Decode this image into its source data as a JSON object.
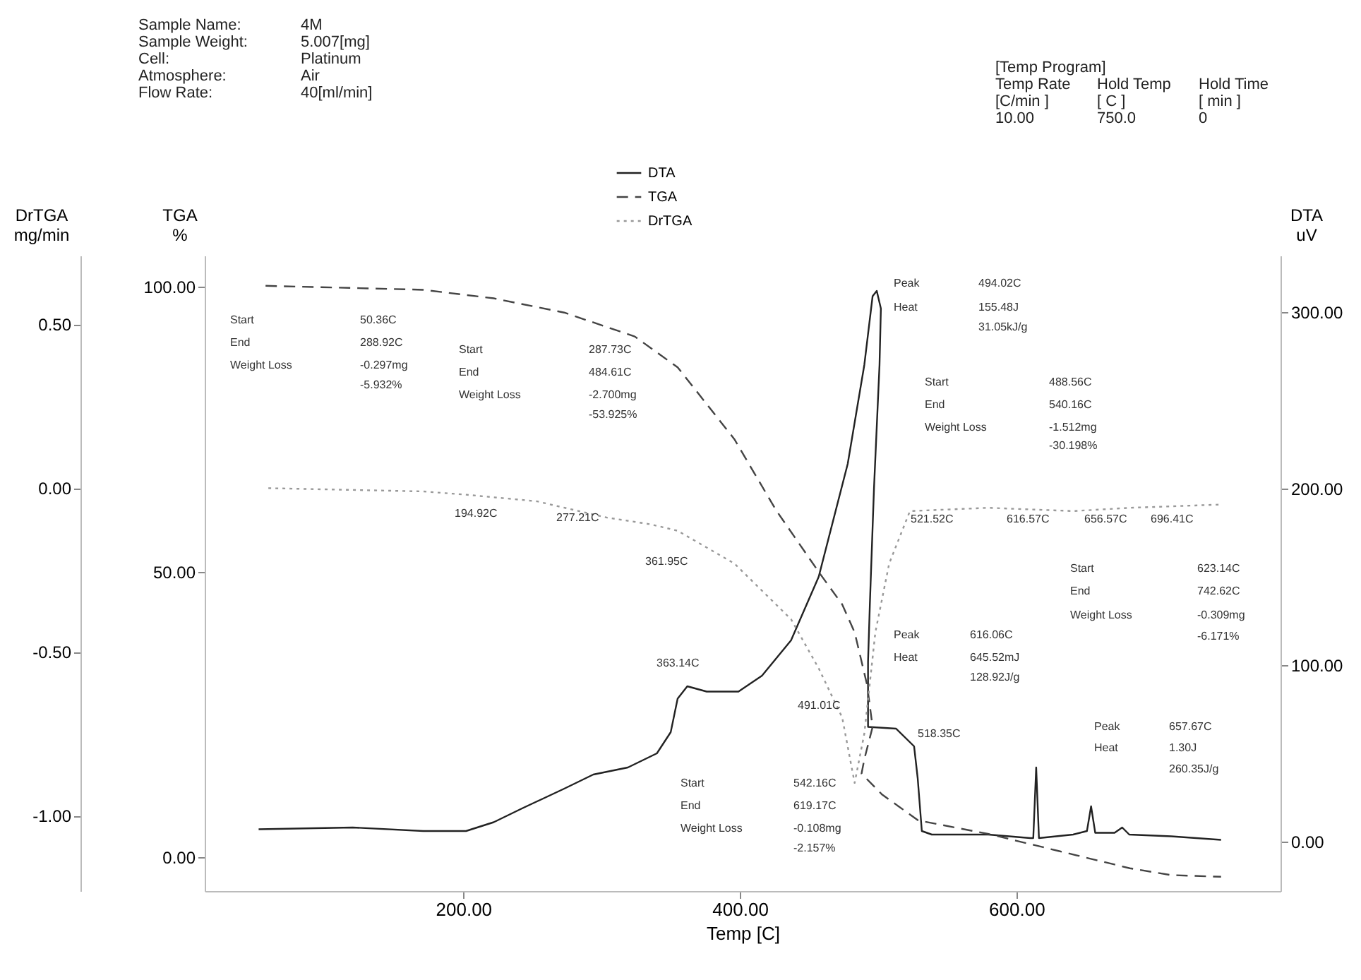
{
  "chart_data": {
    "type": "line",
    "xlabel": "Temp [C]",
    "ylabel": "TGA\n%",
    "y2label": "DTA\nuV",
    "y3label": "DrTGA\nmg/min",
    "xlim": [
      13,
      791
    ],
    "xticks": [
      {
        "value": 200,
        "label": "200.00"
      },
      {
        "value": 400,
        "label": "400.00"
      },
      {
        "value": 600,
        "label": "600.00"
      }
    ],
    "ylim": [
      -6,
      105.5
    ],
    "yticks": [
      {
        "value": 0,
        "label": "0.00"
      },
      {
        "value": 50,
        "label": "50.00"
      },
      {
        "value": 100,
        "label": "100.00"
      }
    ],
    "y2lim": [
      -28,
      332
    ],
    "y2ticks": [
      {
        "value": 0,
        "label": "0.00"
      },
      {
        "value": 100,
        "label": "100.00"
      },
      {
        "value": 200,
        "label": "200.00"
      },
      {
        "value": 300,
        "label": "300.00"
      }
    ],
    "y3lim": [
      -1.23,
      0.71
    ],
    "y3ticks": [
      {
        "value": -1,
        "label": "-1.00"
      },
      {
        "value": -0.5,
        "label": "-0.50"
      },
      {
        "value": 0,
        "label": "0.00"
      },
      {
        "value": 0.5,
        "label": "0.50"
      }
    ],
    "grid": false,
    "legend": "top",
    "series": [
      {
        "name": "DTA",
        "color": "#222222",
        "line_style": "solid",
        "axis": "y2",
        "x": [
          52,
          120,
          171,
          202,
          222,
          243,
          273,
          294,
          319,
          340,
          350,
          355,
          362,
          376,
          399,
          416,
          437,
          457,
          478,
          490,
          496,
          499,
          502,
          501,
          497,
          494,
          492.7,
          492.7,
          513,
          526,
          528.6,
          531.6,
          538.8,
          579.6,
          610,
          612.2,
          614.3,
          616.3,
          641,
          651,
          654,
          657,
          671,
          676.5,
          681.6,
          712,
          748
        ],
        "values": [
          7,
          8,
          6,
          6,
          11,
          19,
          30,
          38,
          42,
          50,
          62,
          81,
          88,
          85,
          85,
          94,
          114,
          150,
          214,
          270,
          309,
          312,
          302,
          270,
          200,
          134,
          102,
          65,
          64,
          54,
          36,
          6,
          4,
          4,
          2,
          2,
          42,
          2,
          4,
          6,
          20,
          5,
          5,
          8,
          4,
          3,
          1
        ]
      },
      {
        "name": "TGA",
        "color": "#444444",
        "line_style": "dashed",
        "axis": "y",
        "x": [
          57,
          171,
          222,
          273,
          324,
          355,
          396,
          426,
          457,
          474,
          483,
          492,
          496,
          490,
          488,
          503,
          529,
          580,
          631,
          682,
          712,
          748
        ],
        "values": [
          100.2,
          99.5,
          98,
          95.5,
          91.3,
          85.9,
          73.3,
          60.9,
          50,
          44.3,
          39.4,
          30.2,
          22.8,
          17.1,
          14.6,
          10.9,
          6.4,
          4,
          1,
          -2,
          -3.2,
          -3.5
        ]
      },
      {
        "name": "DrTGA",
        "color": "#999999",
        "line_style": "dotted",
        "axis": "y3",
        "x": [
          59,
          171,
          202,
          253,
          304,
          335,
          355,
          396,
          437,
          457,
          474,
          483,
          490,
          498,
          508,
          523,
          580,
          641,
          682,
          748
        ],
        "values": [
          0,
          -0.01,
          -0.02,
          -0.04,
          -0.09,
          -0.11,
          -0.13,
          -0.23,
          -0.4,
          -0.55,
          -0.7,
          -0.9,
          -0.75,
          -0.44,
          -0.23,
          -0.07,
          -0.06,
          -0.07,
          -0.06,
          -0.05
        ]
      }
    ],
    "annotations": [
      "Sample Name:",
      "4M",
      "Sample Weight:",
      "5.007[mg]",
      "Cell:",
      "Platinum",
      "Atmosphere:",
      "Air",
      "Flow Rate:",
      "40[ml/min]",
      "[Temp Program]",
      "Temp Rate",
      "Hold Temp",
      "Hold Time",
      "[C/min ]",
      "[ C ]",
      "[ min ]",
      "10.00",
      "750.0",
      "0",
      "Start",
      "50.36C",
      "End",
      "288.92C",
      "Weight Loss",
      "-0.297mg",
      "-5.932%",
      "Start",
      "287.73C",
      "End",
      "484.61C",
      "Weight Loss",
      "-2.700mg",
      "-53.925%",
      "194.92C",
      "277.21C",
      "361.95C",
      "363.14C",
      "Peak",
      "494.02C",
      "Heat",
      "155.48J",
      "31.05kJ/g",
      "Start",
      "488.56C",
      "End",
      "540.16C",
      "Weight Loss",
      "-1.512mg",
      "-30.198%",
      "521.52C",
      "616.57C",
      "656.57C",
      "696.41C",
      "Start",
      "623.14C",
      "End",
      "742.62C",
      "Weight Loss",
      "-0.309mg",
      "-6.171%",
      "Peak",
      "616.06C",
      "Heat",
      "645.52mJ",
      "128.92J/g",
      "491.01C",
      "518.35C",
      "Peak",
      "657.67C",
      "Heat",
      "1.30J",
      "260.35J/g",
      "Start",
      "542.16C",
      "End",
      "619.17C",
      "Weight Loss",
      "-0.108mg",
      "-2.157%"
    ]
  }
}
